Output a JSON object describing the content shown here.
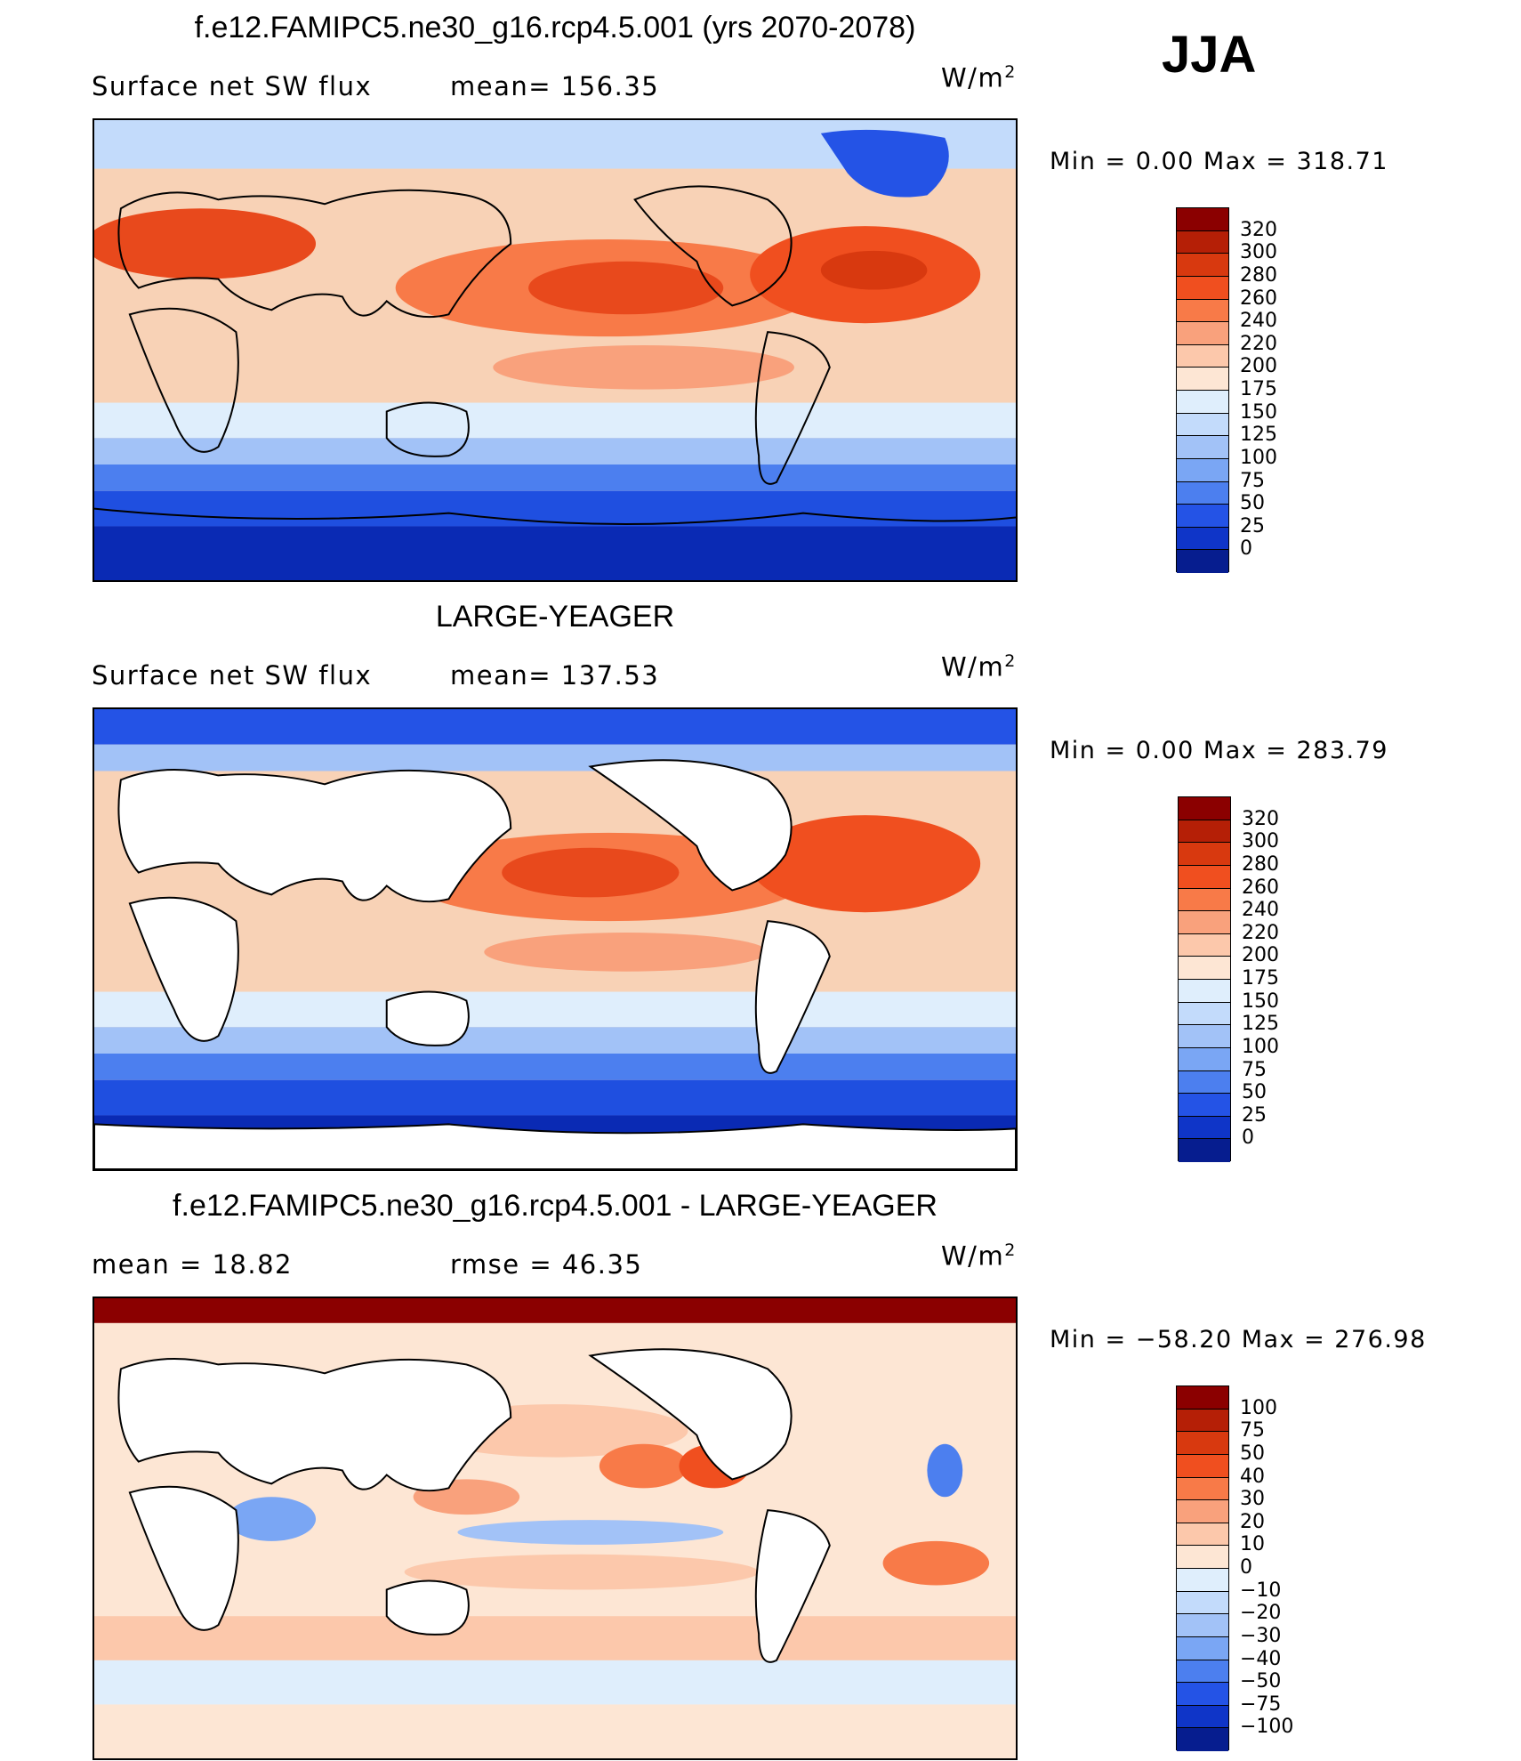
{
  "season": "JJA",
  "panels": [
    {
      "title": "f.e12.FAMIPC5.ne30_g16.rcp4.5.001 (yrs 2070-2078)",
      "left_label": "Surface net SW flux",
      "center_label": "mean= 156.35",
      "units": "W/m",
      "units_sup": "2",
      "minmax": "Min =    0.00 Max = 318.71",
      "colorbar": {
        "levels": [
          "320",
          "300",
          "280",
          "260",
          "240",
          "220",
          "200",
          "175",
          "150",
          "125",
          "100",
          "75",
          "50",
          "25",
          "0"
        ],
        "colors": [
          "#8b0000",
          "#b51f06",
          "#d8390f",
          "#f04f1f",
          "#f87a48",
          "#f9a17c",
          "#fcc8ab",
          "#fde6d4",
          "#dfeefc",
          "#c3dbfb",
          "#a2c2f7",
          "#7aa6f4",
          "#4c7fef",
          "#2453e6",
          "#0f35c8",
          "#061d8f"
        ]
      }
    },
    {
      "title": "LARGE-YEAGER",
      "left_label": "Surface net SW flux",
      "center_label": "mean= 137.53",
      "units": "W/m",
      "units_sup": "2",
      "minmax": "Min =    0.00 Max = 283.79",
      "colorbar": {
        "levels": [
          "320",
          "300",
          "280",
          "260",
          "240",
          "220",
          "200",
          "175",
          "150",
          "125",
          "100",
          "75",
          "50",
          "25",
          "0"
        ],
        "colors": [
          "#8b0000",
          "#b51f06",
          "#d8390f",
          "#f04f1f",
          "#f87a48",
          "#f9a17c",
          "#fcc8ab",
          "#fde6d4",
          "#dfeefc",
          "#c3dbfb",
          "#a2c2f7",
          "#7aa6f4",
          "#4c7fef",
          "#2453e6",
          "#0f35c8",
          "#061d8f"
        ]
      }
    },
    {
      "title": "f.e12.FAMIPC5.ne30_g16.rcp4.5.001 - LARGE-YEAGER",
      "left_label": "mean =    18.82",
      "center_label": "rmse =    46.35",
      "units": "W/m",
      "units_sup": "2",
      "minmax": "Min = −58.20 Max = 276.98",
      "colorbar": {
        "levels": [
          "100",
          "75",
          "50",
          "40",
          "30",
          "20",
          "10",
          "0",
          "−10",
          "−20",
          "−30",
          "−40",
          "−50",
          "−75",
          "−100"
        ],
        "colors": [
          "#8b0000",
          "#b51f06",
          "#d8390f",
          "#f04f1f",
          "#f87a48",
          "#f9a17c",
          "#fcc8ab",
          "#fde6d4",
          "#dfeefc",
          "#c3dbfb",
          "#a2c2f7",
          "#7aa6f4",
          "#4c7fef",
          "#2453e6",
          "#0f35c8",
          "#061d8f"
        ]
      }
    }
  ],
  "map_palette": {
    "land_masked": "#ffffff",
    "coast": "#000000",
    "deep_blue": "#0a2ab4",
    "blue": "#1f4fe0",
    "mid_blue": "#6d97f2",
    "light_blue": "#c3dbfb",
    "pale": "#fde6d4",
    "light_orange": "#fcc8ab",
    "orange": "#f87a48",
    "red_orange": "#e8491c",
    "dark_red": "#8b0000"
  }
}
